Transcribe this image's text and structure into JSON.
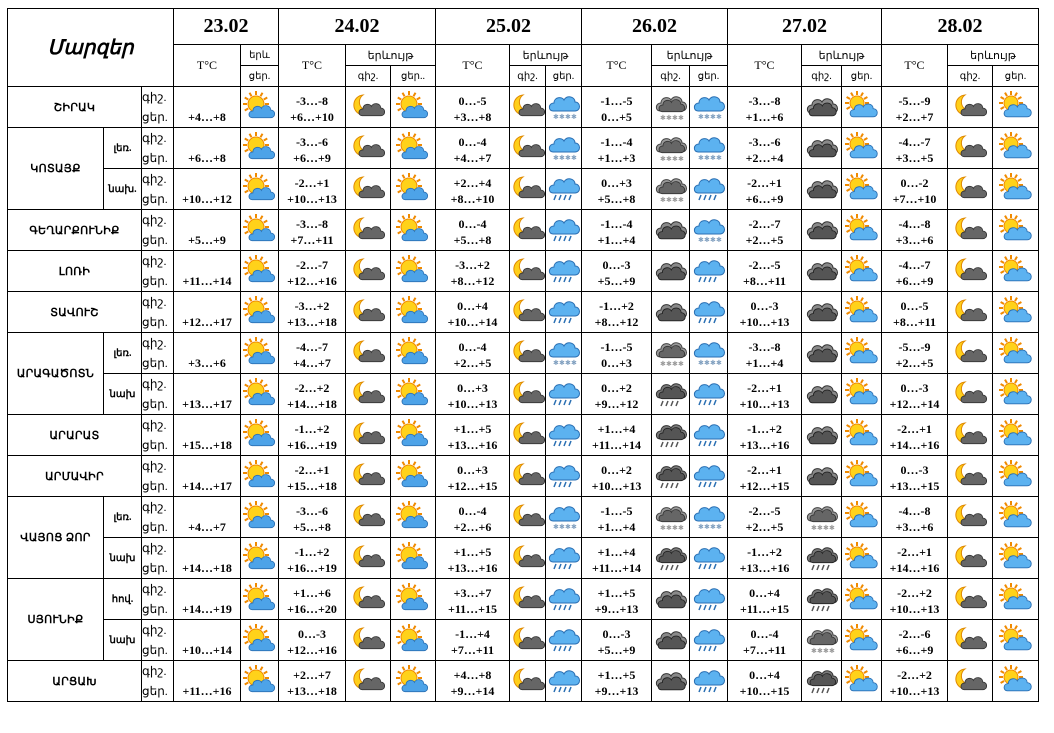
{
  "title": "Մարզեր",
  "dates": [
    "23.02",
    "24.02",
    "25.02",
    "26.02",
    "27.02",
    "28.02"
  ],
  "tc_label": "T°C",
  "event_label": "երևույթ",
  "event_label_cut": "երև",
  "night_label": "գիշ.",
  "day_label": "ցեր.",
  "day_label_cut": "ցեր..",
  "regions": [
    {
      "name": "ՇԻՐԱԿ",
      "subs": [
        {
          "sub": "",
          "d": [
            {
              "t": "+4…+8",
              "i": [
                "sun-partly"
              ]
            },
            {
              "t": "-3…-8\n+6…+10",
              "i": [
                "moon-cloud",
                "sun-partly"
              ]
            },
            {
              "t": "0…-5\n+3…+8",
              "i": [
                "moon-cloud",
                "sleet"
              ]
            },
            {
              "t": "-1…-5\n0…+5",
              "i": [
                "snow-dark",
                "snow-blue"
              ]
            },
            {
              "t": "-3…-8\n+1…+6",
              "i": [
                "cloudy",
                "sun-cloud"
              ]
            },
            {
              "t": "-5…-9\n+2…+7",
              "i": [
                "moon-cloud",
                "sun-cloud"
              ]
            }
          ]
        }
      ]
    },
    {
      "name": "ԿՈՏԱՅՔ",
      "subs": [
        {
          "sub": "լեռ.",
          "d": [
            {
              "t": "+6…+8",
              "i": [
                "sun-partly"
              ]
            },
            {
              "t": "-3…-6\n+6…+9",
              "i": [
                "moon-cloud",
                "sun-partly"
              ]
            },
            {
              "t": "0…-4\n+4…+7",
              "i": [
                "moon-cloud",
                "sleet"
              ]
            },
            {
              "t": "-1…-4\n+1…+3",
              "i": [
                "snow-dark",
                "snow-blue"
              ]
            },
            {
              "t": "-3…-6\n+2…+4",
              "i": [
                "cloudy",
                "sun-cloud"
              ]
            },
            {
              "t": "-4…-7\n+3…+5",
              "i": [
                "moon-cloud",
                "sun-cloud"
              ]
            }
          ]
        },
        {
          "sub": "նախ.",
          "d": [
            {
              "t": "+10…+12",
              "i": [
                "sun-partly"
              ]
            },
            {
              "t": "-2…+1\n+10…+13",
              "i": [
                "moon-cloud",
                "sun-partly"
              ]
            },
            {
              "t": "+2…+4\n+8…+10",
              "i": [
                "moon-cloud",
                "rain"
              ]
            },
            {
              "t": "0…+3\n+5…+8",
              "i": [
                "snow-dark",
                "rain"
              ]
            },
            {
              "t": "-2…+1\n+6…+9",
              "i": [
                "cloudy",
                "sun-cloud"
              ]
            },
            {
              "t": "0…-2\n+7…+10",
              "i": [
                "moon-cloud",
                "sun-cloud"
              ]
            }
          ]
        }
      ]
    },
    {
      "name": "ԳԵՂԱՐՔՈՒՆԻՔ",
      "subs": [
        {
          "sub": "",
          "d": [
            {
              "t": "+5…+9",
              "i": [
                "sun-partly"
              ]
            },
            {
              "t": "-3…-8\n+7…+11",
              "i": [
                "moon-cloud",
                "sun-partly"
              ]
            },
            {
              "t": "0…-4\n+5…+8",
              "i": [
                "moon-cloud",
                "rain"
              ]
            },
            {
              "t": "-1…-4\n+1…+4",
              "i": [
                "cloudy",
                "snow-blue"
              ]
            },
            {
              "t": "-2…-7\n+2…+5",
              "i": [
                "cloudy",
                "sun-cloud"
              ]
            },
            {
              "t": "-4…-8\n+3…+6",
              "i": [
                "moon-cloud",
                "sun-cloud"
              ]
            }
          ]
        }
      ]
    },
    {
      "name": "ԼՈՌԻ",
      "subs": [
        {
          "sub": "",
          "d": [
            {
              "t": "+11…+14",
              "i": [
                "sun-partly"
              ]
            },
            {
              "t": "-2…-7\n+12…+16",
              "i": [
                "moon-cloud",
                "sun-partly"
              ]
            },
            {
              "t": "-3…+2\n+8…+12",
              "i": [
                "moon-cloud",
                "rain"
              ]
            },
            {
              "t": "0…-3\n+5…+9",
              "i": [
                "cloudy",
                "rain"
              ]
            },
            {
              "t": "-2…-5\n+8…+11",
              "i": [
                "cloudy",
                "sun-cloud"
              ]
            },
            {
              "t": "-4…-7\n+6…+9",
              "i": [
                "moon-cloud",
                "sun-cloud"
              ]
            }
          ]
        }
      ]
    },
    {
      "name": "ՏԱՎՈՒՇ",
      "subs": [
        {
          "sub": "",
          "d": [
            {
              "t": "+12…+17",
              "i": [
                "sun-partly"
              ]
            },
            {
              "t": "-3…+2\n+13…+18",
              "i": [
                "moon-cloud",
                "sun-partly"
              ]
            },
            {
              "t": "0…+4\n+10…+14",
              "i": [
                "moon-cloud",
                "rain"
              ]
            },
            {
              "t": "-1…+2\n+8…+12",
              "i": [
                "cloudy",
                "rain"
              ]
            },
            {
              "t": "0…-3\n+10…+13",
              "i": [
                "cloudy",
                "sun-cloud"
              ]
            },
            {
              "t": "0…-5\n+8…+11",
              "i": [
                "moon-cloud",
                "sun-cloud"
              ]
            }
          ]
        }
      ]
    },
    {
      "name": "ԱՐԱԳԱԾՈՏՆ",
      "subs": [
        {
          "sub": "լեռ.",
          "d": [
            {
              "t": "+3…+6",
              "i": [
                "sun-partly"
              ]
            },
            {
              "t": "-4…-7\n+4…+7",
              "i": [
                "moon-cloud",
                "sun-partly"
              ]
            },
            {
              "t": "0…-4\n+2…+5",
              "i": [
                "moon-cloud",
                "sleet"
              ]
            },
            {
              "t": "-1…-5\n0…+3",
              "i": [
                "snow-dark",
                "snow-blue"
              ]
            },
            {
              "t": "-3…-8\n+1…+4",
              "i": [
                "cloudy",
                "sun-cloud"
              ]
            },
            {
              "t": "-5…-9\n+2…+5",
              "i": [
                "moon-cloud",
                "sun-cloud"
              ]
            }
          ]
        },
        {
          "sub": "նախ",
          "d": [
            {
              "t": "+13…+17",
              "i": [
                "sun-partly"
              ]
            },
            {
              "t": "-2…+2\n+14…+18",
              "i": [
                "moon-cloud",
                "sun-partly"
              ]
            },
            {
              "t": "0…+3\n+10…+13",
              "i": [
                "moon-cloud",
                "rain"
              ]
            },
            {
              "t": "0…+2\n+9…+12",
              "i": [
                "rain-dark",
                "rain"
              ]
            },
            {
              "t": "-2…+1\n+10…+13",
              "i": [
                "cloudy",
                "sun-cloud"
              ]
            },
            {
              "t": "0…-3\n+12…+14",
              "i": [
                "moon-cloud",
                "sun-cloud"
              ]
            }
          ]
        }
      ]
    },
    {
      "name": "ԱՐԱՐԱՏ",
      "subs": [
        {
          "sub": "",
          "d": [
            {
              "t": "+15…+18",
              "i": [
                "sun-partly"
              ]
            },
            {
              "t": "-1…+2\n+16…+19",
              "i": [
                "moon-cloud",
                "sun-partly"
              ]
            },
            {
              "t": "+1…+5\n+13…+16",
              "i": [
                "moon-cloud",
                "rain"
              ]
            },
            {
              "t": "+1…+4\n+11…+14",
              "i": [
                "rain-dark",
                "rain"
              ]
            },
            {
              "t": "-1…+2\n+13…+16",
              "i": [
                "cloudy",
                "sun-cloud"
              ]
            },
            {
              "t": "-2…+1\n+14…+16",
              "i": [
                "moon-cloud",
                "sun-cloud"
              ]
            }
          ]
        }
      ]
    },
    {
      "name": "ԱՐՄԱՎԻՐ",
      "subs": [
        {
          "sub": "",
          "d": [
            {
              "t": "+14…+17",
              "i": [
                "sun-partly"
              ]
            },
            {
              "t": "-2…+1\n+15…+18",
              "i": [
                "moon-cloud",
                "sun-partly"
              ]
            },
            {
              "t": "0…+3\n+12…+15",
              "i": [
                "moon-cloud",
                "rain"
              ]
            },
            {
              "t": "0…+2\n+10…+13",
              "i": [
                "rain-dark",
                "rain"
              ]
            },
            {
              "t": "-2…+1\n+12…+15",
              "i": [
                "cloudy",
                "sun-cloud"
              ]
            },
            {
              "t": "0…-3\n+13…+15",
              "i": [
                "moon-cloud",
                "sun-cloud"
              ]
            }
          ]
        }
      ]
    },
    {
      "name": "ՎԱՅՈՑ ՁՈՐ",
      "subs": [
        {
          "sub": "լեռ.",
          "d": [
            {
              "t": "+4…+7",
              "i": [
                "sun-partly"
              ]
            },
            {
              "t": "-3…-6\n+5…+8",
              "i": [
                "moon-cloud",
                "sun-partly"
              ]
            },
            {
              "t": "0…-4\n+2…+6",
              "i": [
                "moon-cloud",
                "sleet"
              ]
            },
            {
              "t": "-1…-5\n+1…+4",
              "i": [
                "snow-dark",
                "snow-blue"
              ]
            },
            {
              "t": "-2…-5\n+2…+5",
              "i": [
                "snow-dark",
                "sun-cloud"
              ]
            },
            {
              "t": "-4…-8\n+3…+6",
              "i": [
                "moon-cloud",
                "sun-cloud"
              ]
            }
          ]
        },
        {
          "sub": "նախ",
          "d": [
            {
              "t": "+14…+18",
              "i": [
                "sun-partly"
              ]
            },
            {
              "t": "-1…+2\n+16…+19",
              "i": [
                "moon-cloud",
                "sun-partly"
              ]
            },
            {
              "t": "+1…+5\n+13…+16",
              "i": [
                "moon-cloud",
                "rain"
              ]
            },
            {
              "t": "+1…+4\n+11…+14",
              "i": [
                "rain-dark",
                "rain"
              ]
            },
            {
              "t": "-1…+2\n+13…+16",
              "i": [
                "rain-dark",
                "sun-cloud"
              ]
            },
            {
              "t": "-2…+1\n+14…+16",
              "i": [
                "moon-cloud",
                "sun-cloud"
              ]
            }
          ]
        }
      ]
    },
    {
      "name": "ՍՅՈՒՆԻՔ",
      "subs": [
        {
          "sub": "հով.",
          "d": [
            {
              "t": "+14…+19",
              "i": [
                "sun-partly"
              ]
            },
            {
              "t": "+1…+6\n+16…+20",
              "i": [
                "moon-cloud",
                "sun-partly"
              ]
            },
            {
              "t": "+3…+7\n+11…+15",
              "i": [
                "moon-cloud",
                "rain"
              ]
            },
            {
              "t": "+1…+5\n+9…+13",
              "i": [
                "cloudy",
                "rain"
              ]
            },
            {
              "t": "0…+4\n+11…+15",
              "i": [
                "rain-dark",
                "sun-cloud"
              ]
            },
            {
              "t": "-2…+2\n+10…+13",
              "i": [
                "moon-cloud",
                "sun-cloud"
              ]
            }
          ]
        },
        {
          "sub": "նախ",
          "d": [
            {
              "t": "+10…+14",
              "i": [
                "sun-partly"
              ]
            },
            {
              "t": "0…-3\n+12…+16",
              "i": [
                "moon-cloud",
                "sun-partly"
              ]
            },
            {
              "t": "-1…+4\n+7…+11",
              "i": [
                "moon-cloud",
                "rain"
              ]
            },
            {
              "t": "0…-3\n+5…+9",
              "i": [
                "cloudy",
                "rain"
              ]
            },
            {
              "t": "0…-4\n+7…+11",
              "i": [
                "snow-dark",
                "sun-cloud"
              ]
            },
            {
              "t": "-2…-6\n+6…+9",
              "i": [
                "moon-cloud",
                "sun-cloud"
              ]
            }
          ]
        }
      ]
    },
    {
      "name": "ԱՐՑԱԽ",
      "subs": [
        {
          "sub": "",
          "d": [
            {
              "t": "+11…+16",
              "i": [
                "sun-partly"
              ]
            },
            {
              "t": "+2…+7\n+13…+18",
              "i": [
                "moon-cloud",
                "sun-partly"
              ]
            },
            {
              "t": "+4…+8\n+9…+14",
              "i": [
                "moon-cloud",
                "rain"
              ]
            },
            {
              "t": "+1…+5\n+9…+13",
              "i": [
                "cloudy",
                "rain"
              ]
            },
            {
              "t": "0…+4\n+10…+15",
              "i": [
                "rain-dark",
                "sun-cloud"
              ]
            },
            {
              "t": "-2…+2\n+10…+13",
              "i": [
                "moon-cloud",
                "sun-cloud"
              ]
            }
          ]
        }
      ]
    }
  ]
}
